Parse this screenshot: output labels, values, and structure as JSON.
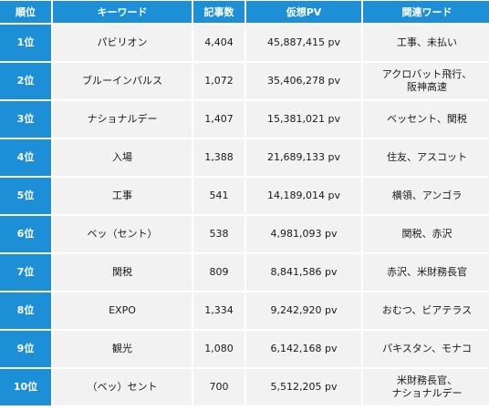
{
  "headers": {
    "rank": "順位",
    "keyword": "キーワード",
    "articles": "記事数",
    "pv": "仮想PV",
    "related": "関連ワード"
  },
  "rows": [
    {
      "rank": "1位",
      "keyword": "パビリオン",
      "articles": "4,404",
      "pv": "45,887,415 pv",
      "related": "工事、未払い"
    },
    {
      "rank": "2位",
      "keyword": "ブルーインパルス",
      "articles": "1,072",
      "pv": "35,406,278 pv",
      "related": "アクロバット飛行、\n阪神高速"
    },
    {
      "rank": "3位",
      "keyword": "ナショナルデー",
      "articles": "1,407",
      "pv": "15,381,021 pv",
      "related": "ベッセント、関税"
    },
    {
      "rank": "4位",
      "keyword": "入場",
      "articles": "1,388",
      "pv": "21,689,133 pv",
      "related": "住友、アスコット"
    },
    {
      "rank": "5位",
      "keyword": "工事",
      "articles": "541",
      "pv": "14,189,014 pv",
      "related": "横領、アンゴラ"
    },
    {
      "rank": "6位",
      "keyword": "ベッ（セント）",
      "articles": "538",
      "pv": "4,981,093 pv",
      "related": "関税、赤沢"
    },
    {
      "rank": "7位",
      "keyword": "関税",
      "articles": "809",
      "pv": "8,841,586 pv",
      "related": "赤沢、米財務長官"
    },
    {
      "rank": "8位",
      "keyword": "EXPO",
      "articles": "1,334",
      "pv": "9,242,920 pv",
      "related": "おむつ、ビアテラス"
    },
    {
      "rank": "9位",
      "keyword": "観光",
      "articles": "1,080",
      "pv": "6,142,168 pv",
      "related": "パキスタン、モナコ"
    },
    {
      "rank": "10位",
      "keyword": "（ベッ）セント",
      "articles": "700",
      "pv": "5,512,205 pv",
      "related": "米財務長官、\nナショナルデー"
    }
  ]
}
